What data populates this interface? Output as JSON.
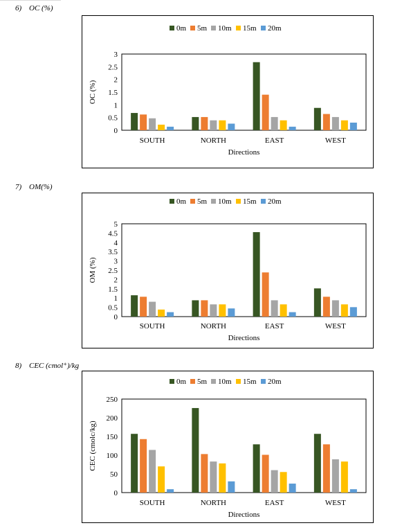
{
  "headings": [
    {
      "number": "6)",
      "title": "OC (%)"
    },
    {
      "number": "7)",
      "title": "OM(%)"
    },
    {
      "number": "8)",
      "title": "CEC (cmol⁺)/kg"
    }
  ],
  "series_colors": {
    "0m": "#375623",
    "5m": "#ed7d31",
    "10m": "#a5a5a5",
    "15m": "#ffc000",
    "20m": "#5b9bd5"
  },
  "chart_data": [
    {
      "type": "bar",
      "categories": [
        "SOUTH",
        "NORTH",
        "EAST",
        "WEST"
      ],
      "xlabel": "Directions",
      "ylabel": "OC (%)",
      "ylim": [
        0,
        3
      ],
      "ticks": [
        "0",
        "0.5",
        "1",
        "1.5",
        "2",
        "2.5",
        "3"
      ],
      "tick_values": [
        0,
        0.5,
        1,
        1.5,
        2,
        2.5,
        3
      ],
      "legend_position": "top",
      "grid": false,
      "series": [
        {
          "name": "0m",
          "values": [
            0.68,
            0.52,
            2.68,
            0.88
          ]
        },
        {
          "name": "5m",
          "values": [
            0.62,
            0.52,
            1.4,
            0.64
          ]
        },
        {
          "name": "10m",
          "values": [
            0.47,
            0.39,
            0.52,
            0.52
          ]
        },
        {
          "name": "15m",
          "values": [
            0.22,
            0.39,
            0.39,
            0.39
          ]
        },
        {
          "name": "20m",
          "values": [
            0.14,
            0.26,
            0.14,
            0.3
          ]
        }
      ]
    },
    {
      "type": "bar",
      "categories": [
        "SOUTH",
        "NORTH",
        "EAST",
        "WEST"
      ],
      "xlabel": "Directions",
      "ylabel": "OM (%)",
      "ylim": [
        0,
        5
      ],
      "ticks": [
        "0",
        "0.5",
        "1",
        "1.5",
        "2",
        "2.5",
        "3",
        "3.5",
        "4",
        "4.5",
        "5"
      ],
      "tick_values": [
        0,
        0.5,
        1,
        1.5,
        2,
        2.5,
        3,
        3.5,
        4,
        4.5,
        5
      ],
      "legend_position": "top",
      "grid": false,
      "series": [
        {
          "name": "0m",
          "values": [
            1.15,
            0.88,
            4.55,
            1.52
          ]
        },
        {
          "name": "5m",
          "values": [
            1.07,
            0.88,
            2.38,
            1.07
          ]
        },
        {
          "name": "10m",
          "values": [
            0.8,
            0.66,
            0.88,
            0.88
          ]
        },
        {
          "name": "15m",
          "values": [
            0.38,
            0.66,
            0.66,
            0.66
          ]
        },
        {
          "name": "20m",
          "values": [
            0.24,
            0.44,
            0.24,
            0.51
          ]
        }
      ]
    },
    {
      "type": "bar",
      "categories": [
        "SOUTH",
        "NORTH",
        "EAST",
        "WEST"
      ],
      "xlabel": "Directions",
      "ylabel": "CEC (cmolc/kg)",
      "ylim": [
        0,
        250
      ],
      "ticks": [
        "0",
        "50",
        "100",
        "150",
        "200",
        "250"
      ],
      "tick_values": [
        0,
        50,
        100,
        150,
        200,
        250
      ],
      "legend_position": "top",
      "grid": false,
      "series": [
        {
          "name": "0m",
          "values": [
            157,
            226,
            129,
            157
          ]
        },
        {
          "name": "5m",
          "values": [
            143,
            103,
            101,
            129
          ]
        },
        {
          "name": "10m",
          "values": [
            114,
            83,
            60,
            89
          ]
        },
        {
          "name": "15m",
          "values": [
            70,
            78,
            55,
            83
          ]
        },
        {
          "name": "20m",
          "values": [
            9,
            30,
            24,
            9
          ]
        }
      ]
    }
  ]
}
